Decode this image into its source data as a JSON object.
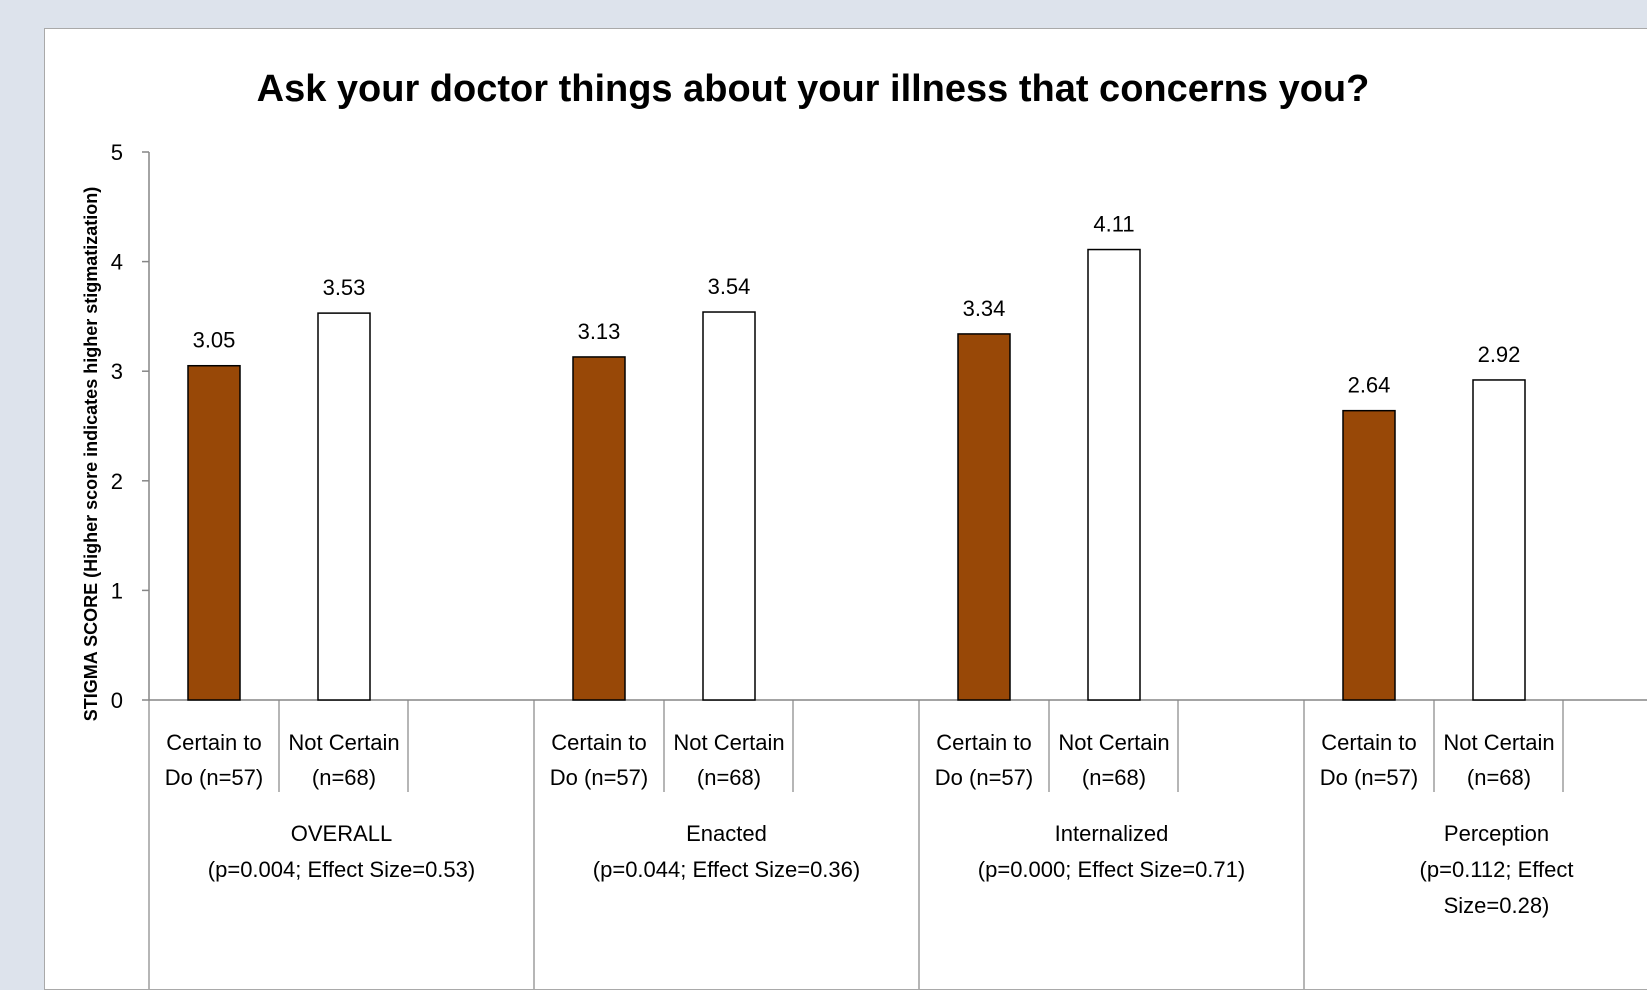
{
  "chart_data": {
    "type": "bar",
    "title": "Ask your doctor things about your illness that concerns you?",
    "ylabel": "STIGMA SCORE (Higher score indicates higher stigmatization)",
    "xlabel": "",
    "ylim": [
      0,
      5
    ],
    "yticks": [
      "0",
      "1",
      "2",
      "3",
      "4",
      "5"
    ],
    "grid": false,
    "colors": {
      "certain": "#984807",
      "not_certain": "#ffffff",
      "bar_stroke": "#000000"
    },
    "groups": [
      {
        "name_lines": [
          "OVERALL",
          "(p=0.004; Effect Size=0.53)"
        ],
        "bars": [
          {
            "label_lines": [
              "Certain to",
              "Do (n=57)"
            ],
            "value": 3.05,
            "value_label": "3.05",
            "series": "certain"
          },
          {
            "label_lines": [
              "Not Certain",
              "(n=68)"
            ],
            "value": 3.53,
            "value_label": "3.53",
            "series": "not_certain"
          }
        ]
      },
      {
        "name_lines": [
          "Enacted",
          "(p=0.044; Effect Size=0.36)"
        ],
        "bars": [
          {
            "label_lines": [
              "Certain to",
              "Do (n=57)"
            ],
            "value": 3.13,
            "value_label": "3.13",
            "series": "certain"
          },
          {
            "label_lines": [
              "Not Certain",
              "(n=68)"
            ],
            "value": 3.54,
            "value_label": "3.54",
            "series": "not_certain"
          }
        ]
      },
      {
        "name_lines": [
          "Internalized",
          "(p=0.000; Effect Size=0.71)"
        ],
        "bars": [
          {
            "label_lines": [
              "Certain to",
              "Do (n=57)"
            ],
            "value": 3.34,
            "value_label": "3.34",
            "series": "certain"
          },
          {
            "label_lines": [
              "Not Certain",
              "(n=68)"
            ],
            "value": 4.11,
            "value_label": "4.11",
            "series": "not_certain"
          }
        ]
      },
      {
        "name_lines": [
          "Perception",
          "(p=0.112; Effect",
          "Size=0.28)"
        ],
        "bars": [
          {
            "label_lines": [
              "Certain to",
              "Do (n=57)"
            ],
            "value": 2.64,
            "value_label": "2.64",
            "series": "certain"
          },
          {
            "label_lines": [
              "Not Certain",
              "(n=68)"
            ],
            "value": 2.92,
            "value_label": "2.92",
            "series": "not_certain"
          }
        ]
      }
    ]
  }
}
